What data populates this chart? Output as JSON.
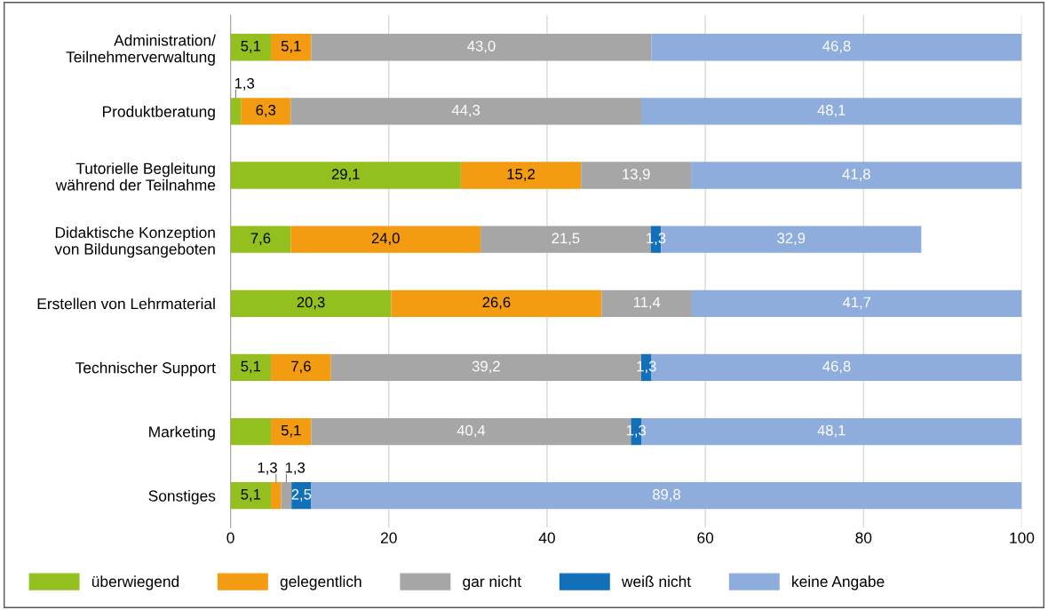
{
  "chart_data": {
    "type": "bar",
    "orientation": "horizontal",
    "stacked": true,
    "categories": [
      "Administration/\nTeilnehmerverwaltung",
      "Produktberatung",
      "Tutorielle Begleitung\nwährend der Teilnahme",
      "Didaktische Konzeption\nvon Bildungsangeboten",
      "Erstellen von Lehrmaterial",
      "Technischer Support",
      "Marketing",
      "Sonstiges"
    ],
    "series": [
      {
        "name": "überwiegend",
        "color": "#93c01f",
        "values": [
          5.1,
          1.3,
          29.1,
          7.6,
          20.3,
          5.1,
          5.1,
          5.1
        ],
        "value_labels": [
          "5,1",
          "1,3",
          "29,1",
          "7,6",
          "20,3",
          "5,1",
          null,
          "5,1"
        ]
      },
      {
        "name": "gelegentlich",
        "color": "#f39c12",
        "values": [
          5.1,
          6.3,
          15.2,
          24.0,
          26.6,
          7.6,
          5.1,
          1.3
        ],
        "value_labels": [
          "5,1",
          "6,3",
          "15,2",
          "24,0",
          "26,6",
          "7,6",
          "5,1",
          "1,3"
        ]
      },
      {
        "name": "gar nicht",
        "color": "#a6a6a6",
        "values": [
          43.0,
          44.3,
          13.9,
          21.5,
          11.4,
          39.2,
          40.4,
          1.3
        ],
        "value_labels": [
          "43,0",
          "44,3",
          "13,9",
          "21,5",
          "11,4",
          "39,2",
          "40,4",
          "1,3"
        ]
      },
      {
        "name": "weiß nicht",
        "color": "#1170b8",
        "values": [
          null,
          null,
          null,
          1.3,
          null,
          1.3,
          1.3,
          2.5
        ],
        "value_labels": [
          null,
          null,
          null,
          "1,3",
          null,
          "1,3",
          "1,3",
          "2,5"
        ]
      },
      {
        "name": "keine Angabe",
        "color": "#8eaddc",
        "values": [
          46.8,
          48.1,
          41.8,
          32.9,
          41.7,
          46.8,
          48.1,
          89.8
        ],
        "value_labels": [
          "46,8",
          "48,1",
          "41,8",
          "32,9",
          "41,7",
          "46,8",
          "48,1",
          "89,8"
        ]
      }
    ],
    "xlim": [
      0,
      100
    ],
    "xticks": [
      0,
      20,
      40,
      60,
      80,
      100
    ],
    "grid": "x",
    "legend": "bottom"
  }
}
